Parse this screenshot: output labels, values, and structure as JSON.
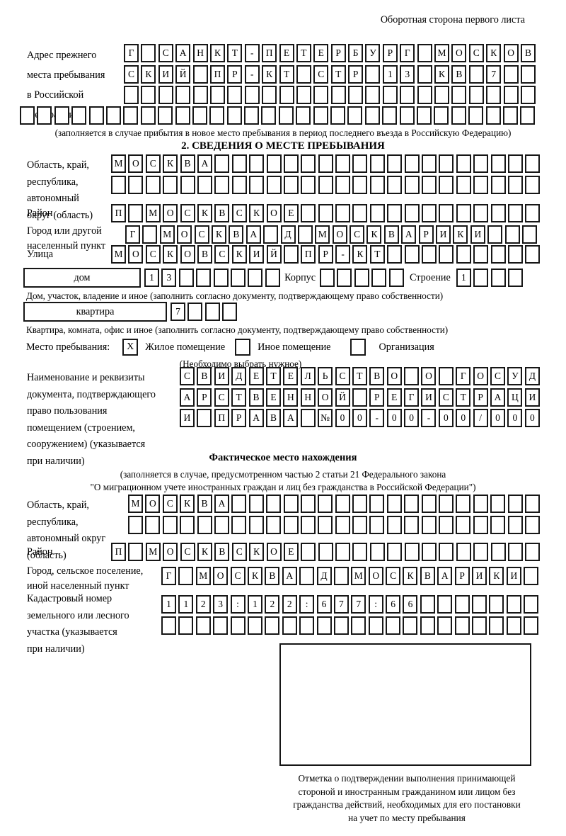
{
  "page": {
    "corner_note": "Оборотная сторона первого листа"
  },
  "prev_address": {
    "label_lines": [
      "Адрес прежнего",
      "места пребывания",
      "в Российской",
      "Федерации"
    ],
    "rows": [
      "Г САНКТ-ПЕТЕРБУРГ МОСКОВ",
      "СКИЙ ПР-КТ СТР 13 КВ 7",
      "",
      ""
    ],
    "caption": "(заполняется в случае прибытия в новое место пребывания в период последнего въезда в Российскую Федерацию)"
  },
  "section2": {
    "title": "2. СВЕДЕНИЯ О МЕСТЕ ПРЕБЫВАНИЯ",
    "oblast": {
      "label_lines": [
        "Область, край,",
        "республика,",
        "автономный",
        "округ (область)"
      ],
      "rows": [
        "МОСКВА",
        ""
      ]
    },
    "raion": {
      "label": "Район",
      "value": "П МОСКВСКОЕ"
    },
    "gorod": {
      "label_lines": [
        "Город или другой",
        "населенный пункт"
      ],
      "value": "Г МОСКВА Д МОСКВАРИКИ"
    },
    "ulitsa": {
      "label": "Улица",
      "value": "МОСКОВСКИЙ ПР-КТ"
    },
    "dom": {
      "box_label": "дом",
      "cells1": "13",
      "korpus_label": "Корпус",
      "cells2": "",
      "stroenie_label": "Строение",
      "cells3": "1",
      "caption": "Дом, участок, владение и иное (заполнить согласно документу, подтверждающему право собственности)"
    },
    "kvartira": {
      "box_label": "квартира",
      "cells": "7",
      "caption": "Квартира, комната, офис и иное (заполнить согласно документу, подтверждающему право собственности)"
    },
    "residence": {
      "label": "Место пребывания:",
      "options": [
        {
          "label": "Жилое помещение",
          "mark": "X"
        },
        {
          "label": "Иное помещение",
          "mark": ""
        },
        {
          "label": "Организация",
          "mark": ""
        }
      ],
      "note": "(Необходимо выбрать нужное)"
    },
    "document": {
      "label_lines": [
        "Наименование и реквизиты",
        "документа, подтверждающего",
        "право пользования",
        "помещением (строением,",
        "сооружением) (указывается",
        "при наличии)"
      ],
      "rows": [
        "СВИДЕТЕЛЬСТВО О ГОСУД",
        "АРСТВЕННОЙ РЕГИСТРАЦИ",
        "И ПРАВА №00-00-00/000"
      ]
    }
  },
  "factual": {
    "title": "Фактическое место нахождения",
    "caption_lines": [
      "(заполняется в случае, предусмотренном частью 2 статьи 21 Федерального закона",
      "\"О миграционном учете иностранных граждан и лиц без гражданства в Российской Федерации\")"
    ],
    "oblast": {
      "label_lines": [
        "Область, край,",
        "республика,",
        "автономный округ",
        "(область)"
      ],
      "rows": [
        "МОСКВА",
        ""
      ]
    },
    "raion": {
      "label": "Район",
      "value": "П МОСКВСКОЕ"
    },
    "gorod": {
      "label_lines": [
        "Город, сельское поселение,",
        "иной населенный пункт"
      ],
      "value": "Г МОСКВА Д МОСКВАРИКИ"
    },
    "kadastr": {
      "label_lines": [
        "Кадастровый номер",
        "земельного или лесного",
        "участка (указывается",
        "при наличии)"
      ],
      "rows": [
        "1123:122:677:66",
        ""
      ]
    },
    "stamp_note_lines": [
      "Отметка о подтверждении выполнения принимающей",
      "стороной и иностранным гражданином или лицом без",
      "гражданства действий, необходимых для его постановки",
      "на учет по месту пребывания"
    ]
  }
}
